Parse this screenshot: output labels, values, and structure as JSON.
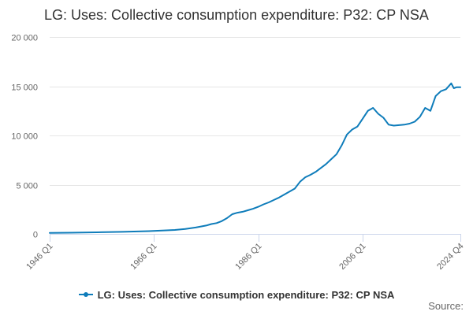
{
  "colors": {
    "series": "#0e7cba",
    "grid": "#e6e6e6",
    "axis": "#ccd6eb",
    "tick_text": "#666666"
  },
  "legend": {
    "label": "LG: Uses: Collective consumption expenditure: P32: CP NSA"
  },
  "credits": {
    "label": "Source:"
  },
  "chart_data": {
    "type": "line",
    "title": "LG: Uses: Collective consumption expenditure: P32: CP NSA",
    "xlabel": "",
    "ylabel": "",
    "x_range": [
      1946.0,
      2024.75
    ],
    "ylim": [
      0,
      20000
    ],
    "y_ticks": [
      0,
      5000,
      10000,
      15000,
      20000
    ],
    "y_tick_labels": [
      "0",
      "5 000",
      "10 000",
      "15 000",
      "20 000"
    ],
    "x_ticks": [
      1946.0,
      1966.0,
      1986.0,
      2006.0,
      2024.75
    ],
    "x_tick_labels": [
      "1946 Q1",
      "1966 Q1",
      "1986 Q1",
      "2006 Q1",
      "2024 Q4"
    ],
    "grid": true,
    "legend_position": "bottom-center",
    "series": [
      {
        "name": "LG: Uses: Collective consumption expenditure: P32: CP NSA",
        "x": [
          1946,
          1950,
          1955,
          1960,
          1965,
          1968,
          1970,
          1972,
          1974,
          1975,
          1976,
          1977,
          1978,
          1979,
          1980,
          1981,
          1982,
          1983,
          1984,
          1985,
          1986,
          1987,
          1988,
          1989,
          1990,
          1991,
          1992,
          1993,
          1994,
          1995,
          1996,
          1997,
          1998,
          1999,
          2000,
          2001,
          2002,
          2003,
          2004,
          2005,
          2006,
          2007,
          2008,
          2009,
          2010,
          2011,
          2012,
          2013,
          2014,
          2015,
          2016,
          2017,
          2018,
          2019,
          2020,
          2021,
          2022,
          2023,
          2023.5,
          2024,
          2024.75
        ],
        "values": [
          100,
          120,
          160,
          210,
          280,
          350,
          400,
          500,
          650,
          750,
          850,
          1000,
          1100,
          1300,
          1600,
          2000,
          2150,
          2250,
          2400,
          2550,
          2750,
          3000,
          3200,
          3450,
          3700,
          4000,
          4300,
          4600,
          5300,
          5750,
          6000,
          6300,
          6700,
          7100,
          7600,
          8100,
          9000,
          10100,
          10600,
          10900,
          11700,
          12500,
          12800,
          12200,
          11800,
          11100,
          11000,
          11050,
          11100,
          11200,
          11400,
          11900,
          12800,
          12500,
          14000,
          14500,
          14700,
          15300,
          14800,
          14900,
          14900
        ]
      }
    ]
  }
}
